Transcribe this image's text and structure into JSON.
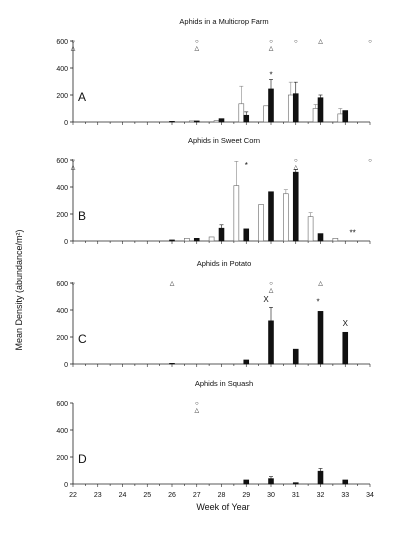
{
  "figure": {
    "ylabel": "Mean Density (abundance/m²)",
    "xlabel": "Week of Year",
    "x_ticks": [
      "22",
      "23",
      "24",
      "25",
      "26",
      "27",
      "28",
      "29",
      "30",
      "31",
      "32",
      "33",
      "34"
    ]
  },
  "chart_data": [
    {
      "type": "bar",
      "title": "Aphids in a Multicrop Farm",
      "panel_letter": "A",
      "ylim": [
        0,
        600
      ],
      "y_ticks": [
        0,
        200,
        400,
        600
      ],
      "x_range": [
        22,
        34
      ],
      "grid": false,
      "series": [
        {
          "name": "",
          "style": "open",
          "x": [
            26.8,
            27.8,
            28.8,
            29.8,
            30.8,
            31.8,
            32.8
          ],
          "values": [
            8,
            10,
            135,
            120,
            200,
            100,
            60
          ],
          "errors": [
            0,
            0,
            130,
            0,
            95,
            30,
            40
          ]
        },
        {
          "name": "",
          "style": "filled",
          "x": [
            26.0,
            27.0,
            28.0,
            29.0,
            30.0,
            31.0,
            32.0,
            33.0
          ],
          "values": [
            5,
            8,
            25,
            50,
            245,
            210,
            180,
            85
          ],
          "errors": [
            0,
            0,
            0,
            25,
            70,
            85,
            20,
            0
          ]
        }
      ],
      "markers": [
        {
          "x": 22,
          "symbols": [
            "○",
            "△"
          ]
        },
        {
          "x": 27,
          "symbols": [
            "○",
            "△"
          ]
        },
        {
          "x": 30,
          "symbols": [
            "○",
            "△"
          ]
        },
        {
          "x": 31,
          "symbols": [
            "○"
          ]
        },
        {
          "x": 32,
          "symbols": [
            "△"
          ]
        },
        {
          "x": 34,
          "symbols": [
            "○"
          ]
        }
      ],
      "annotations": [
        {
          "x": 30,
          "y": 330,
          "text": "*"
        }
      ]
    },
    {
      "type": "bar",
      "title": "Aphids in Sweet Corn",
      "panel_letter": "B",
      "ylim": [
        0,
        600
      ],
      "y_ticks": [
        0,
        200,
        400,
        600
      ],
      "x_range": [
        22,
        34
      ],
      "grid": false,
      "series": [
        {
          "name": "",
          "style": "open",
          "x": [
            26.6,
            27.6,
            28.6,
            29.6,
            30.6,
            31.6,
            32.6
          ],
          "values": [
            20,
            30,
            410,
            270,
            350,
            180,
            20
          ],
          "errors": [
            0,
            0,
            180,
            0,
            30,
            30,
            0
          ]
        },
        {
          "name": "",
          "style": "filled",
          "x": [
            26.0,
            27.0,
            28.0,
            29.0,
            30.0,
            31.0,
            32.0
          ],
          "values": [
            8,
            20,
            95,
            90,
            365,
            510,
            55
          ],
          "errors": [
            0,
            0,
            25,
            0,
            0,
            20,
            0
          ]
        }
      ],
      "markers": [
        {
          "x": 22,
          "symbols": [
            "○",
            "△"
          ]
        },
        {
          "x": 31,
          "symbols": [
            "○",
            "△"
          ]
        },
        {
          "x": 34,
          "symbols": [
            "○"
          ]
        }
      ],
      "annotations": [
        {
          "x": 29,
          "y": 540,
          "text": "*"
        },
        {
          "x": 33.3,
          "y": 40,
          "text": "**"
        }
      ]
    },
    {
      "type": "bar",
      "title": "Aphids in Potato",
      "panel_letter": "C",
      "ylim": [
        0,
        600
      ],
      "y_ticks": [
        0,
        200,
        400,
        600
      ],
      "x_range": [
        22,
        34
      ],
      "grid": false,
      "series": [
        {
          "name": "",
          "style": "filled",
          "x": [
            26.0,
            29.0,
            30.0,
            31.0,
            32.0,
            33.0
          ],
          "values": [
            5,
            30,
            320,
            110,
            390,
            235
          ],
          "errors": [
            0,
            0,
            100,
            0,
            0,
            0
          ]
        }
      ],
      "markers": [
        {
          "x": 22,
          "symbols": [
            "○"
          ]
        },
        {
          "x": 26,
          "symbols": [
            "△"
          ]
        },
        {
          "x": 30,
          "symbols": [
            "○",
            "△"
          ]
        },
        {
          "x": 32,
          "symbols": [
            "△"
          ]
        }
      ],
      "annotations": [
        {
          "x": 29.8,
          "y": 460,
          "text": "X"
        },
        {
          "x": 31.9,
          "y": 440,
          "text": "*"
        },
        {
          "x": 33.0,
          "y": 280,
          "text": "X"
        }
      ]
    },
    {
      "type": "bar",
      "title": "Aphids in Squash",
      "panel_letter": "D",
      "ylim": [
        0,
        600
      ],
      "y_ticks": [
        0,
        200,
        400,
        600
      ],
      "x_range": [
        22,
        34
      ],
      "grid": false,
      "series": [
        {
          "name": "",
          "style": "filled",
          "x": [
            29.0,
            30.0,
            31.0,
            32.0,
            33.0
          ],
          "values": [
            30,
            40,
            10,
            95,
            30
          ],
          "errors": [
            0,
            15,
            0,
            20,
            0
          ]
        }
      ],
      "markers": [
        {
          "x": 27,
          "symbols": [
            "○",
            "△"
          ]
        }
      ],
      "annotations": []
    }
  ]
}
